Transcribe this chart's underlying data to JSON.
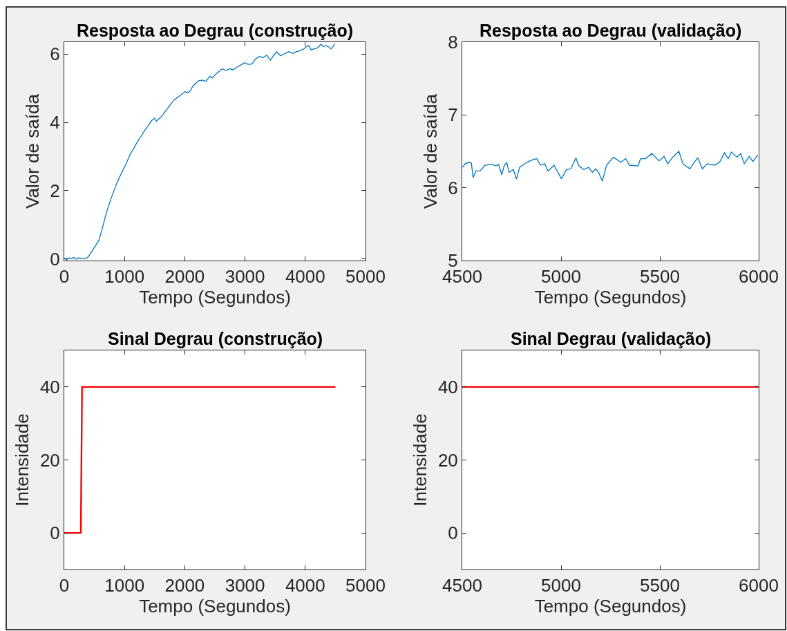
{
  "chart_data": [
    {
      "type": "line",
      "title": "Resposta ao Degrau (construção)",
      "xlabel": "Tempo (Segundos)",
      "ylabel": "Valor de saída",
      "xlim": [
        0,
        5000
      ],
      "xticks": [
        0,
        1000,
        2000,
        3000,
        4000,
        5000
      ],
      "ylim": [
        -0.05,
        6.35
      ],
      "yticks": [
        0,
        2,
        4,
        6
      ],
      "series": [
        {
          "color": "#0072bd",
          "x": [
            0,
            40,
            80,
            120,
            160,
            200,
            240,
            280,
            320,
            360,
            400,
            480,
            574,
            640,
            697,
            780,
            861,
            920,
            984,
            1025,
            1090,
            1148,
            1210,
            1270,
            1330,
            1393,
            1450,
            1496,
            1530,
            1557,
            1600,
            1639,
            1700,
            1762,
            1820,
            1885,
            1950,
            2008,
            2050,
            2090,
            2130,
            2172,
            2230,
            2295,
            2350,
            2418,
            2460,
            2500,
            2560,
            2623,
            2680,
            2746,
            2800,
            2869,
            2930,
            2992,
            3050,
            3115,
            3170,
            3238,
            3300,
            3361,
            3422,
            3470,
            3525,
            3590,
            3648,
            3700,
            3730,
            3790,
            3852,
            3910,
            3975,
            4020,
            4057,
            4100,
            4139,
            4200,
            4262,
            4300,
            4344,
            4400,
            4426,
            4460,
            4488
          ],
          "values": [
            0.02,
            -0.03,
            0.03,
            0.01,
            0.04,
            -0.01,
            0.03,
            0.0,
            0.02,
            0.01,
            0.06,
            0.28,
            0.54,
            0.95,
            1.34,
            1.78,
            2.17,
            2.4,
            2.64,
            2.78,
            3.05,
            3.22,
            3.42,
            3.58,
            3.75,
            3.9,
            4.05,
            4.12,
            4.03,
            4.08,
            4.15,
            4.23,
            4.38,
            4.52,
            4.65,
            4.74,
            4.82,
            4.9,
            4.86,
            4.92,
            5.05,
            5.13,
            5.22,
            5.24,
            5.2,
            5.35,
            5.3,
            5.39,
            5.48,
            5.57,
            5.52,
            5.57,
            5.54,
            5.62,
            5.68,
            5.75,
            5.7,
            5.71,
            5.85,
            5.93,
            5.9,
            5.97,
            5.82,
            5.95,
            6.07,
            5.95,
            6.0,
            6.05,
            6.07,
            6.02,
            6.07,
            6.1,
            6.15,
            6.22,
            6.25,
            6.12,
            6.15,
            6.18,
            6.29,
            6.22,
            6.25,
            6.2,
            6.15,
            6.22,
            6.31
          ]
        }
      ]
    },
    {
      "type": "line",
      "title": "Resposta ao Degrau (validação)",
      "xlabel": "Tempo (Segundos)",
      "ylabel": "Valor de saída",
      "xlim": [
        4500,
        6000
      ],
      "xticks": [
        4500,
        5000,
        5500,
        6000
      ],
      "ylim": [
        5,
        8
      ],
      "yticks": [
        5,
        6,
        7,
        8
      ],
      "series": [
        {
          "color": "#0072bd",
          "x": [
            4502,
            4515,
            4534,
            4546,
            4555,
            4569,
            4590,
            4615,
            4652,
            4671,
            4684,
            4700,
            4712,
            4725,
            4737,
            4759,
            4774,
            4790,
            4827,
            4852,
            4877,
            4896,
            4917,
            4934,
            4965,
            5002,
            5027,
            5050,
            5075,
            5090,
            5115,
            5140,
            5159,
            5175,
            5190,
            5209,
            5230,
            5265,
            5302,
            5327,
            5346,
            5390,
            5402,
            5427,
            5459,
            5496,
            5521,
            5540,
            5565,
            5596,
            5617,
            5652,
            5671,
            5692,
            5715,
            5740,
            5777,
            5802,
            5827,
            5846,
            5862,
            5890,
            5909,
            5927,
            5952,
            5971,
            5996
          ],
          "values": [
            6.28,
            6.33,
            6.35,
            6.34,
            6.14,
            6.23,
            6.23,
            6.31,
            6.32,
            6.3,
            6.32,
            6.18,
            6.3,
            6.35,
            6.21,
            6.25,
            6.12,
            6.28,
            6.35,
            6.38,
            6.4,
            6.31,
            6.33,
            6.23,
            6.31,
            6.12,
            6.25,
            6.26,
            6.41,
            6.3,
            6.25,
            6.28,
            6.21,
            6.26,
            6.21,
            6.09,
            6.31,
            6.42,
            6.35,
            6.4,
            6.31,
            6.3,
            6.4,
            6.4,
            6.47,
            6.37,
            6.43,
            6.33,
            6.42,
            6.5,
            6.33,
            6.26,
            6.34,
            6.41,
            6.26,
            6.33,
            6.31,
            6.35,
            6.48,
            6.4,
            6.49,
            6.42,
            6.47,
            6.33,
            6.43,
            6.36,
            6.45
          ]
        }
      ]
    },
    {
      "type": "line",
      "title": "Sinal Degrau (construção)",
      "xlabel": "Tempo (Segundos)",
      "ylabel": "Intensidade",
      "xlim": [
        0,
        5000
      ],
      "xticks": [
        0,
        1000,
        2000,
        3000,
        4000,
        5000
      ],
      "ylim": [
        -10,
        50
      ],
      "yticks": [
        0,
        20,
        40
      ],
      "series": [
        {
          "color": "#ff0000",
          "x": [
            0,
            275,
            295,
            4500
          ],
          "values": [
            0,
            0,
            40,
            40
          ]
        }
      ]
    },
    {
      "type": "line",
      "title": "Sinal Degrau (validação)",
      "xlabel": "Tempo (Segundos)",
      "ylabel": "Intensidade",
      "xlim": [
        4500,
        6000
      ],
      "xticks": [
        4500,
        5000,
        5500,
        6000
      ],
      "ylim": [
        -10,
        50
      ],
      "yticks": [
        0,
        20,
        40
      ],
      "series": [
        {
          "color": "#ff0000",
          "x": [
            4500,
            6000
          ],
          "values": [
            40,
            40
          ]
        }
      ]
    }
  ]
}
